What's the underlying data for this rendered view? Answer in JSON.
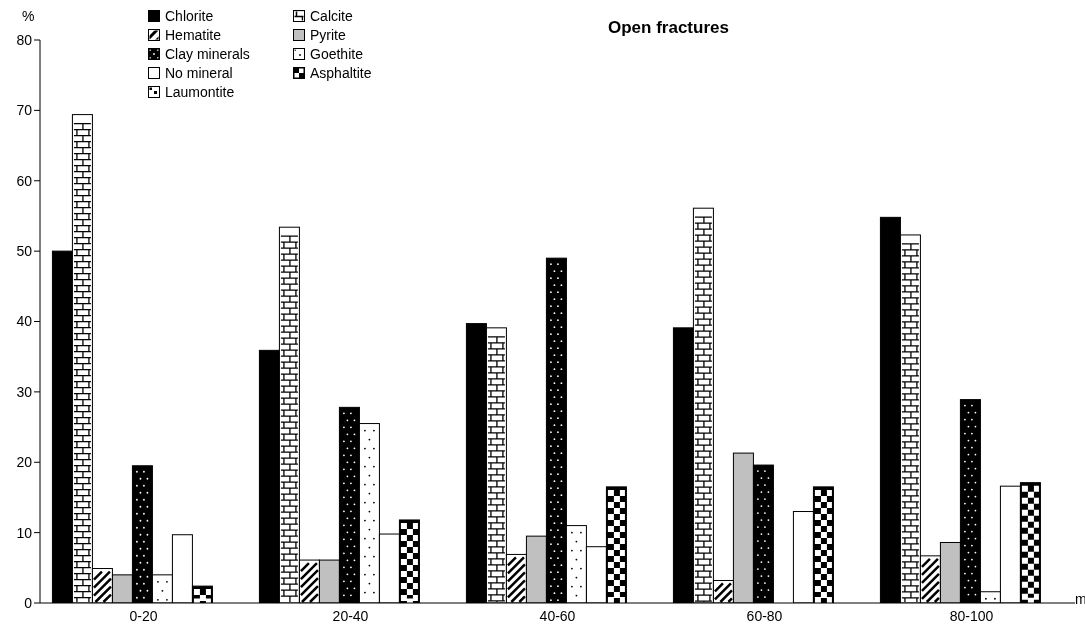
{
  "chart_data": {
    "type": "bar",
    "title": "Open fractures",
    "xlabel": "m",
    "ylabel": "%",
    "categories": [
      "0-20",
      "20-40",
      "40-60",
      "60-80",
      "80-100"
    ],
    "series": [
      {
        "name": "Chlorite",
        "color": "#000000",
        "values": [
          50.0,
          35.9,
          39.7,
          39.1,
          54.8
        ]
      },
      {
        "name": "Calcite",
        "color": "#ffffff",
        "values": [
          69.4,
          53.4,
          39.1,
          56.1,
          52.3
        ]
      },
      {
        "name": "Hematite",
        "color": "#ffffff",
        "values": [
          4.9,
          6.1,
          6.9,
          3.2,
          6.7
        ]
      },
      {
        "name": "Pyrite",
        "color": "#c0c0c0",
        "values": [
          4.0,
          6.1,
          9.5,
          21.3,
          8.6
        ]
      },
      {
        "name": "Clay minerals",
        "color": "#000000",
        "values": [
          19.5,
          27.8,
          49.0,
          19.6,
          28.9
        ]
      },
      {
        "name": "Goethite",
        "color": "#ffffff",
        "values": [
          4.0,
          25.5,
          11.0,
          null,
          1.6
        ]
      },
      {
        "name": "No mineral",
        "color": "#ffffff",
        "values": [
          9.7,
          9.8,
          8.0,
          13.0,
          16.6
        ]
      },
      {
        "name": "Asphaltite",
        "color": "#000000",
        "values": [
          2.4,
          11.8,
          16.5,
          16.5,
          17.1
        ]
      },
      {
        "name": "Laumontite",
        "color": "#ffffff",
        "values": [
          null,
          null,
          null,
          null,
          null
        ]
      }
    ],
    "ylim": [
      0,
      80
    ],
    "yticks": [
      0,
      10,
      20,
      30,
      40,
      50,
      60,
      70,
      80
    ],
    "grid": false,
    "legend": "top left"
  }
}
